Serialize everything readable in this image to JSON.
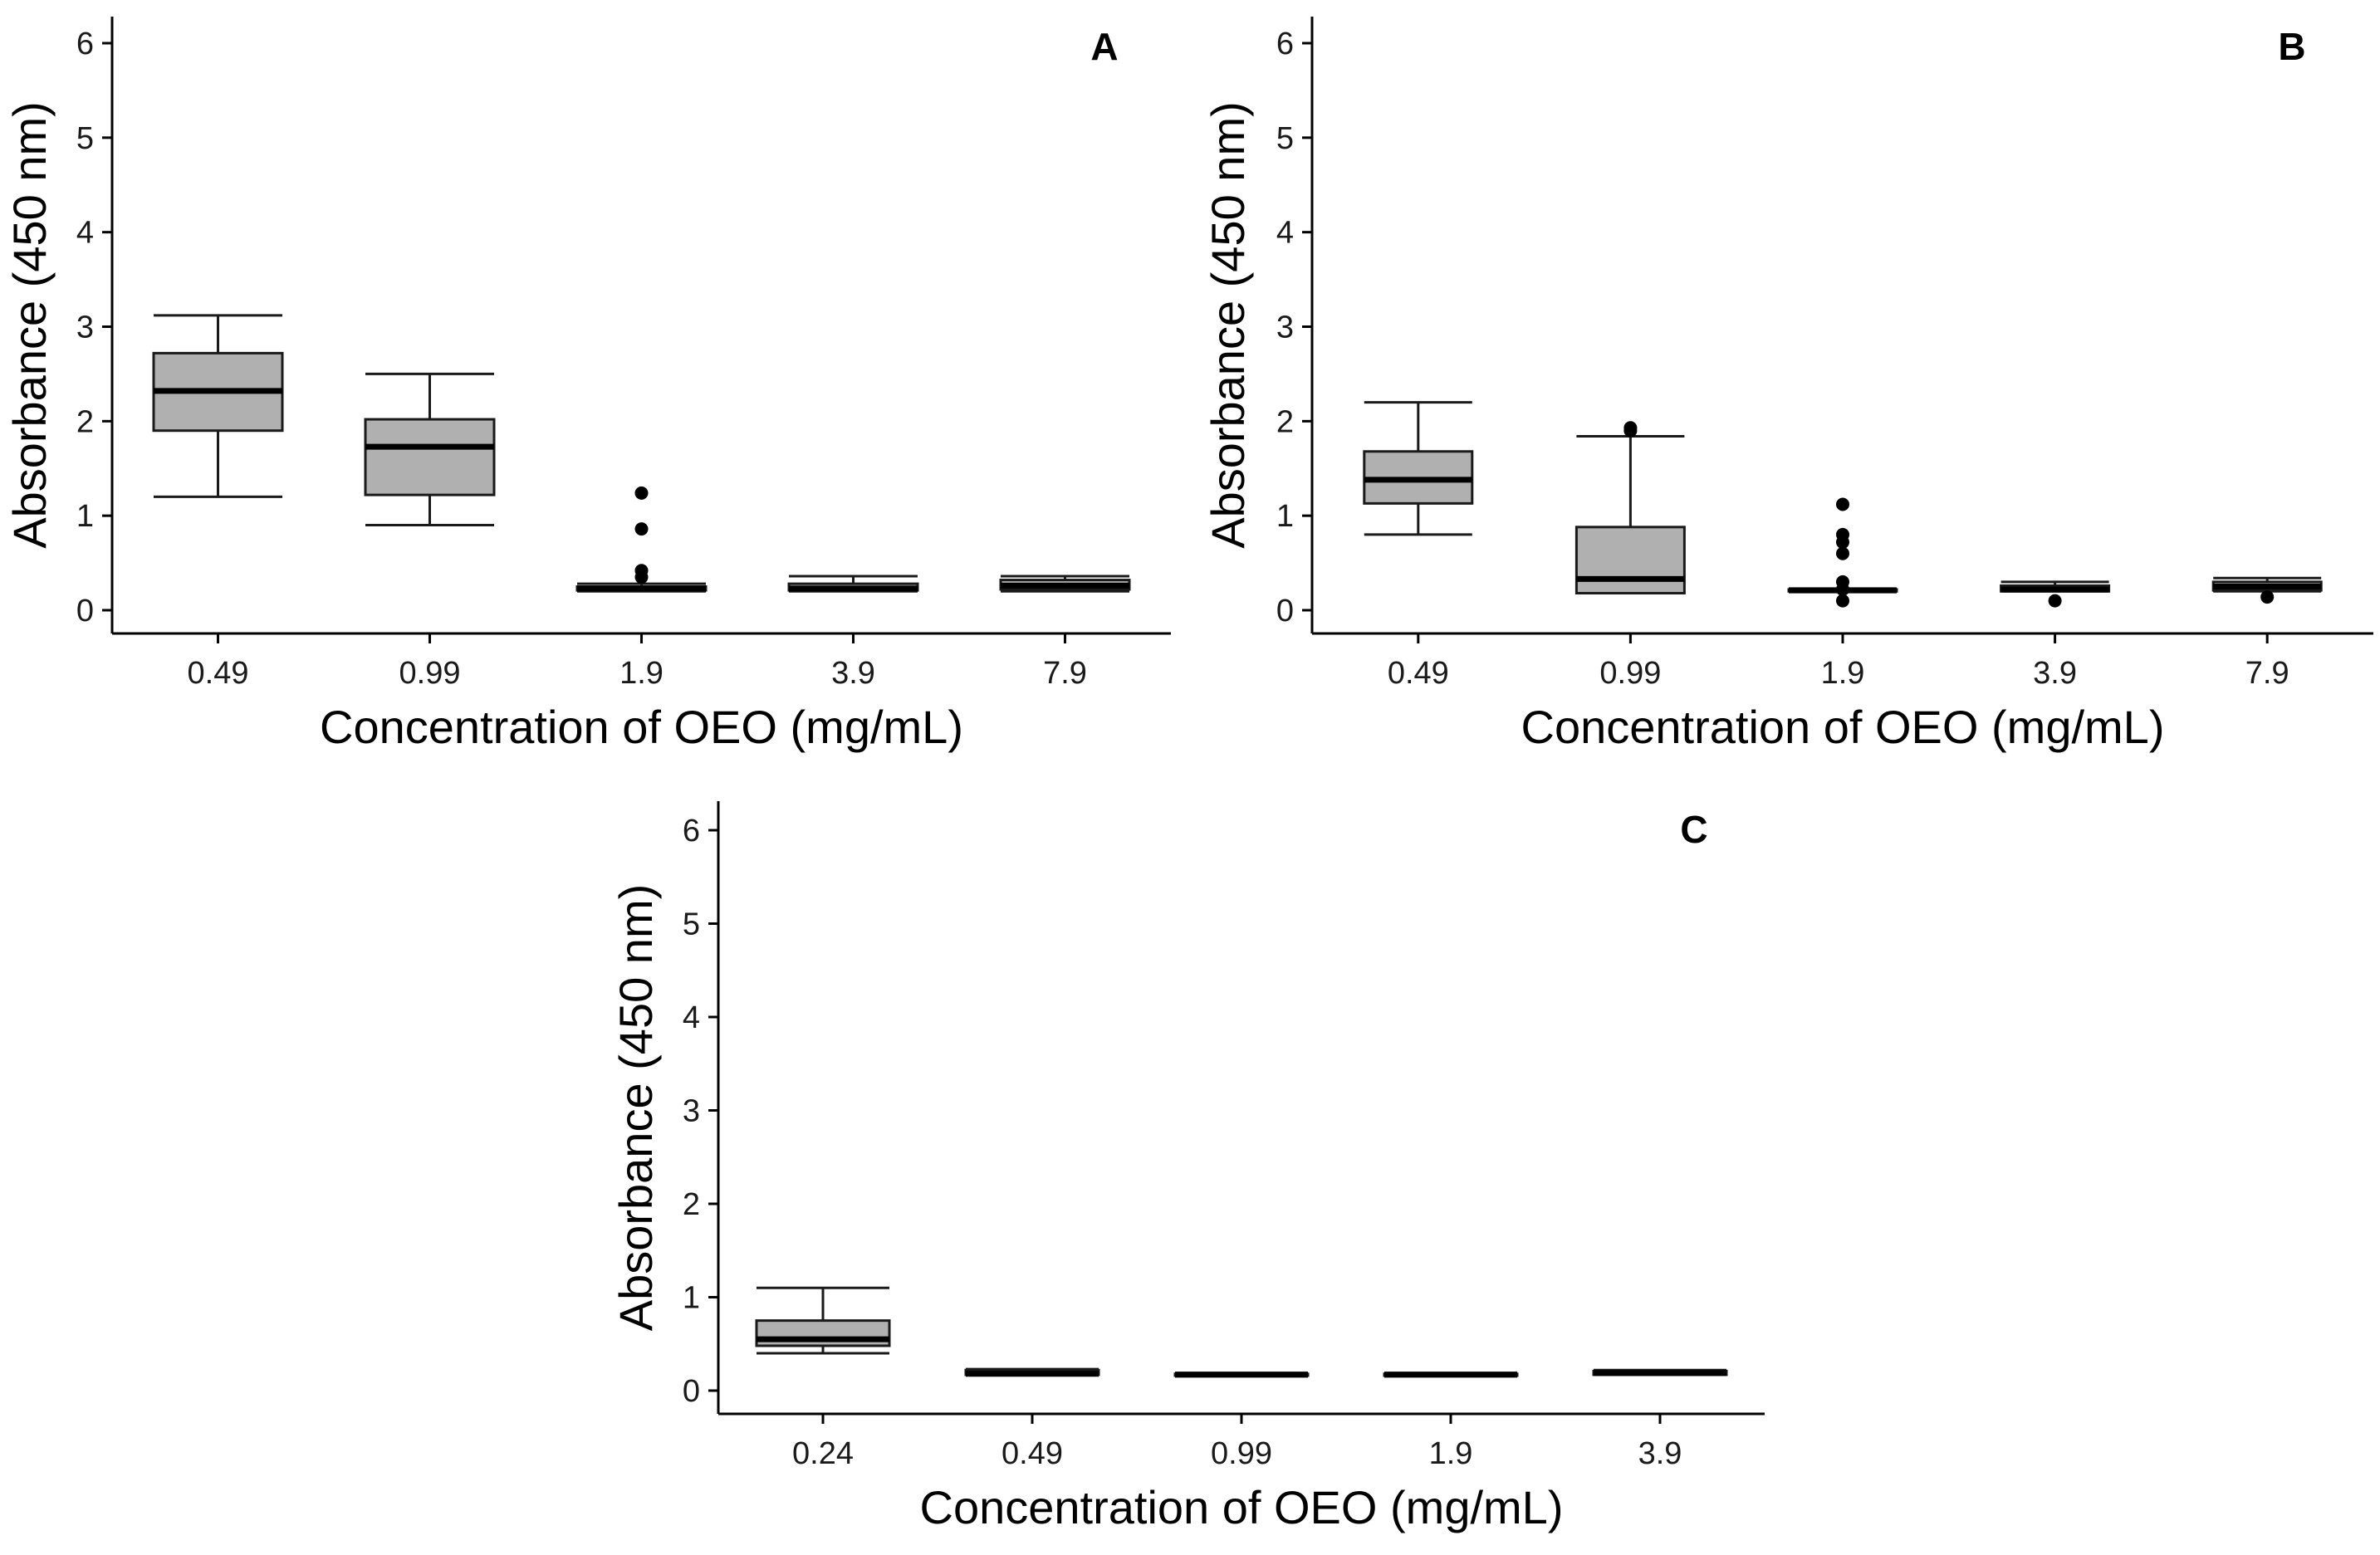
{
  "chart_data": [
    {
      "type": "box",
      "panel": "A",
      "title": "",
      "xlabel": "Concentration of OEO (mg/mL)",
      "ylabel": "Absorbance (450 nm)",
      "ylim": [
        0,
        6
      ],
      "yticks": [
        "0",
        "1",
        "2",
        "3",
        "4",
        "5",
        "6"
      ],
      "categories": [
        "0.49",
        "0.99",
        "1.9",
        "3.9",
        "7.9"
      ],
      "boxes": [
        {
          "min": 1.2,
          "q1": 1.9,
          "median": 2.32,
          "q3": 2.72,
          "max": 3.12,
          "outliers": []
        },
        {
          "min": 0.9,
          "q1": 1.22,
          "median": 1.73,
          "q3": 2.02,
          "max": 2.5,
          "outliers": []
        },
        {
          "min": 0.2,
          "q1": 0.21,
          "median": 0.23,
          "q3": 0.25,
          "max": 0.28,
          "outliers": [
            0.35,
            0.42,
            0.86,
            1.24
          ]
        },
        {
          "min": 0.2,
          "q1": 0.21,
          "median": 0.23,
          "q3": 0.28,
          "max": 0.36,
          "outliers": []
        },
        {
          "min": 0.2,
          "q1": 0.22,
          "median": 0.26,
          "q3": 0.32,
          "max": 0.36,
          "outliers": []
        }
      ]
    },
    {
      "type": "box",
      "panel": "B",
      "title": "",
      "xlabel": "Concentration of OEO (mg/mL)",
      "ylabel": "Absorbance (450 nm)",
      "ylim": [
        0,
        6
      ],
      "yticks": [
        "0",
        "1",
        "2",
        "3",
        "4",
        "5",
        "6"
      ],
      "categories": [
        "0.49",
        "0.99",
        "1.9",
        "3.9",
        "7.9"
      ],
      "boxes": [
        {
          "min": 0.8,
          "q1": 1.13,
          "median": 1.38,
          "q3": 1.68,
          "max": 2.2,
          "outliers": []
        },
        {
          "min": 0.18,
          "q1": 0.18,
          "median": 0.33,
          "q3": 0.88,
          "max": 1.84,
          "outliers": [
            1.9,
            1.93
          ]
        },
        {
          "min": 0.2,
          "q1": 0.2,
          "median": 0.21,
          "q3": 0.22,
          "max": 0.23,
          "outliers": [
            0.1,
            0.22,
            0.3,
            0.6,
            0.72,
            0.8,
            1.12
          ]
        },
        {
          "min": 0.2,
          "q1": 0.2,
          "median": 0.22,
          "q3": 0.26,
          "max": 0.3,
          "outliers": [
            0.1
          ]
        },
        {
          "min": 0.2,
          "q1": 0.21,
          "median": 0.25,
          "q3": 0.3,
          "max": 0.34,
          "outliers": [
            0.14
          ]
        }
      ]
    },
    {
      "type": "box",
      "panel": "C",
      "title": "",
      "xlabel": "Concentration of OEO (mg/mL)",
      "ylabel": "Absorbance (450 nm)",
      "ylim": [
        0,
        6
      ],
      "yticks": [
        "0",
        "1",
        "2",
        "3",
        "4",
        "5",
        "6"
      ],
      "categories": [
        "0.24",
        "0.49",
        "0.99",
        "1.9",
        "3.9"
      ],
      "boxes": [
        {
          "min": 0.4,
          "q1": 0.48,
          "median": 0.55,
          "q3": 0.75,
          "max": 1.1,
          "outliers": []
        },
        {
          "min": 0.17,
          "q1": 0.17,
          "median": 0.18,
          "q3": 0.22,
          "max": 0.23,
          "outliers": []
        },
        {
          "min": 0.16,
          "q1": 0.16,
          "median": 0.17,
          "q3": 0.18,
          "max": 0.19,
          "outliers": []
        },
        {
          "min": 0.16,
          "q1": 0.16,
          "median": 0.17,
          "q3": 0.18,
          "max": 0.19,
          "outliers": []
        },
        {
          "min": 0.17,
          "q1": 0.17,
          "median": 0.19,
          "q3": 0.21,
          "max": 0.22,
          "outliers": []
        }
      ]
    }
  ]
}
